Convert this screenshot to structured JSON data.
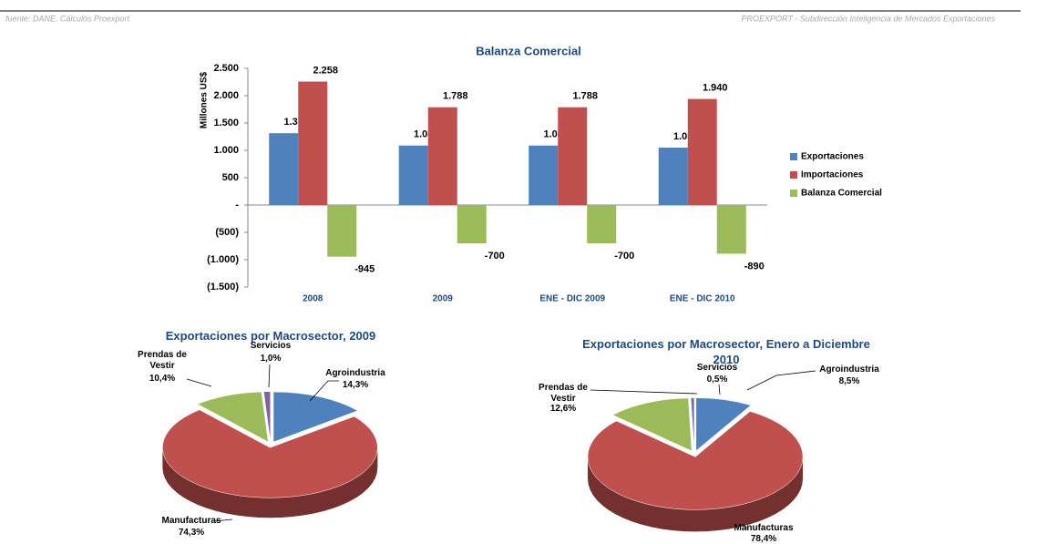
{
  "header": {
    "source": "fuente: DANE. Cálculos Proexport",
    "credit": "PROEXPORT - Subdirección Inteligencia de Mercados Exportaciones"
  },
  "chart_data": [
    {
      "type": "bar",
      "title": "Balanza Comercial",
      "y_label": "Millones US$",
      "categories": [
        "2008",
        "2009",
        "ENE - DIC 2009",
        "ENE - DIC 2010"
      ],
      "series": [
        {
          "name": "Exportaciones",
          "color": "#4f81bd",
          "values": [
            1313,
            1088,
            1088,
            1050
          ],
          "value_labels": [
            "1.313",
            "1.088",
            "1.088",
            "1.050"
          ]
        },
        {
          "name": "Importaciones",
          "color": "#c0504d",
          "values": [
            2258,
            1788,
            1788,
            1940
          ],
          "value_labels": [
            "2.258",
            "1.788",
            "1.788",
            "1.940"
          ]
        },
        {
          "name": "Balanza Comercial",
          "color": "#9bbb59",
          "values": [
            -945,
            -700,
            -700,
            -890
          ]
        }
      ],
      "ylim": [
        -1500,
        2500
      ],
      "yticks": [
        {
          "value": 2500,
          "label": "2.500"
        },
        {
          "value": 2000,
          "label": "2.000"
        },
        {
          "value": 1500,
          "label": "1.500"
        },
        {
          "value": 1000,
          "label": "1.000"
        },
        500,
        {
          "value": 0,
          "label": "-"
        },
        {
          "value": -500,
          "label": "(500)"
        },
        {
          "value": -1000,
          "label": "(1.000)"
        },
        {
          "value": -1500,
          "label": "(1.500)"
        }
      ],
      "legend": "right"
    },
    {
      "type": "pie",
      "title": "Exportaciones por Macrosector, 2009",
      "categories": [
        "Agroindustria",
        "Manufacturas",
        "Prendas de Vestir",
        "Servicios"
      ],
      "values": [
        14.3,
        74.3,
        10.4,
        1.0
      ],
      "value_labels": [
        "14,3%",
        "74,3%",
        "10,4%",
        "1,0%"
      ],
      "colors": [
        "#4f81bd",
        "#c0504d",
        "#9bbb59",
        "#8064a2"
      ]
    },
    {
      "type": "pie",
      "title": "Exportaciones por Macrosector, Enero a Diciembre 2010",
      "categories": [
        "Agroindustria",
        "Manufacturas",
        "Prendas de Vestir",
        "Servicios"
      ],
      "values": [
        8.5,
        78.4,
        12.6,
        0.5
      ],
      "value_labels": [
        "8,5%",
        "78,4%",
        "12,6%",
        "0,5%"
      ],
      "colors": [
        "#4f81bd",
        "#c0504d",
        "#9bbb59",
        "#8064a2"
      ]
    }
  ]
}
